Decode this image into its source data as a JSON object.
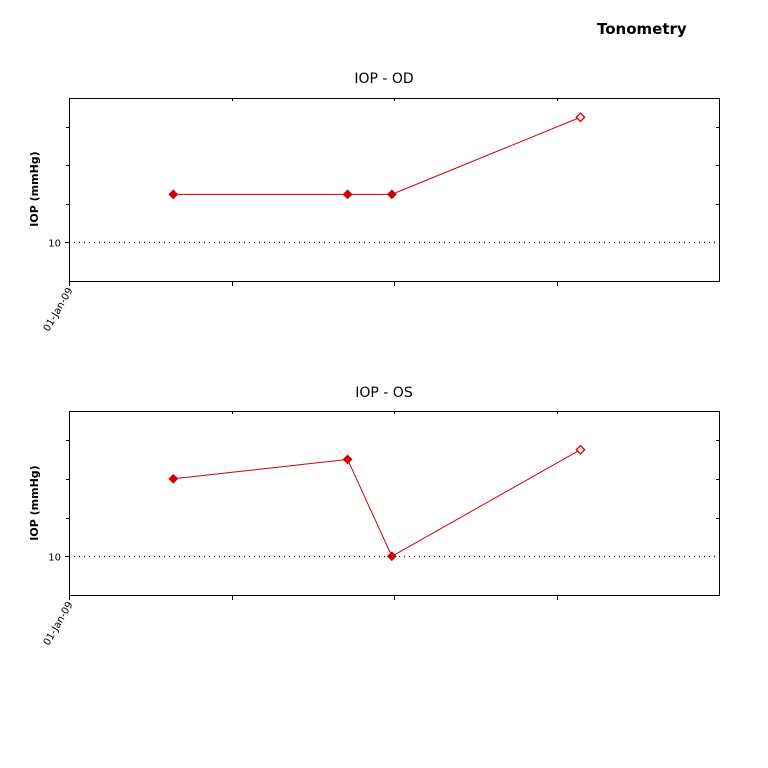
{
  "page": {
    "title": "Tonometry"
  },
  "colors": {
    "series": "#cc0000",
    "frame": "#000000",
    "reference_line": "#000000"
  },
  "chart_data": [
    {
      "type": "line",
      "title": "IOP - OD",
      "ylabel": "IOP (mmHg)",
      "x_tick_labels": [
        "01-Jan-09"
      ],
      "y_tick_labels": [
        "10"
      ],
      "reference_line": {
        "y": 10,
        "style": "dotted"
      },
      "grid": false,
      "series": [
        {
          "x": [
            "2009-03-15",
            "2009-07-15",
            "2009-08-15",
            "2009-12-25"
          ],
          "values": [
            12.5,
            12.5,
            12.5,
            16.5
          ],
          "markers": [
            "filled",
            "filled",
            "filled",
            "open"
          ]
        }
      ]
    },
    {
      "type": "line",
      "title": "IOP - OS",
      "ylabel": "IOP (mmHg)",
      "x_tick_labels": [
        "01-Jan-09"
      ],
      "y_tick_labels": [
        "10"
      ],
      "reference_line": {
        "y": 10,
        "style": "dotted"
      },
      "grid": false,
      "series": [
        {
          "x": [
            "2009-03-15",
            "2009-07-15",
            "2009-08-15",
            "2009-12-25"
          ],
          "values": [
            14,
            15,
            10,
            15.5
          ],
          "markers": [
            "filled",
            "filled",
            "filled",
            "open"
          ]
        }
      ]
    }
  ]
}
